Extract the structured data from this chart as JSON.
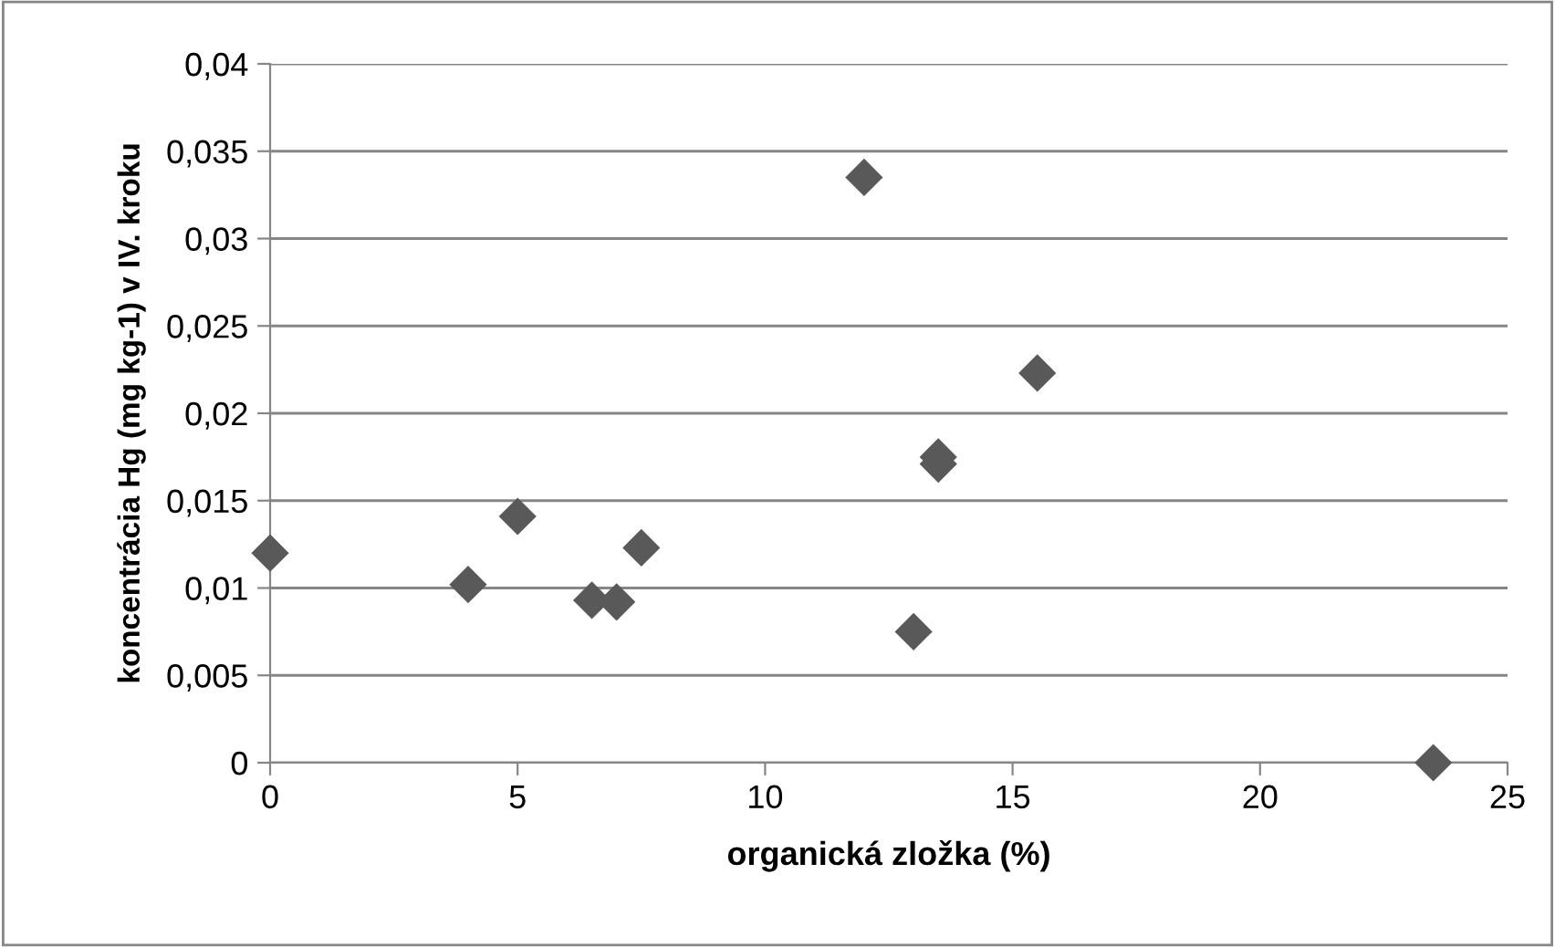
{
  "chart_data": {
    "type": "scatter",
    "xlabel": "organická zložka (%)",
    "ylabel": "koncentrácia Hg (mg kg-1) v IV. kroku",
    "x": [
      0,
      4,
      5,
      6.5,
      7,
      7.5,
      12,
      13,
      13.5,
      13.5,
      15.5,
      23.5
    ],
    "values": [
      0.012,
      0.0102,
      0.0141,
      0.0093,
      0.0092,
      0.0123,
      0.0335,
      0.0075,
      0.0175,
      0.0171,
      0.0223,
      0.0
    ],
    "color": "#595959",
    "marker": "diamond",
    "grid": "y",
    "legend": false,
    "xlim": [
      0,
      25
    ],
    "xticks": [
      0,
      5,
      10,
      15,
      20,
      25
    ],
    "ylim": [
      0,
      0.04
    ],
    "yticks": [
      {
        "value": 0,
        "label": "0"
      },
      {
        "value": 0.005,
        "label": "0,005"
      },
      {
        "value": 0.01,
        "label": "0,01"
      },
      {
        "value": 0.015,
        "label": "0,015"
      },
      {
        "value": 0.02,
        "label": "0,02"
      },
      {
        "value": 0.025,
        "label": "0,025"
      },
      {
        "value": 0.03,
        "label": "0,03"
      },
      {
        "value": 0.035,
        "label": "0,035"
      },
      {
        "value": 0.04,
        "label": "0,04"
      }
    ]
  }
}
